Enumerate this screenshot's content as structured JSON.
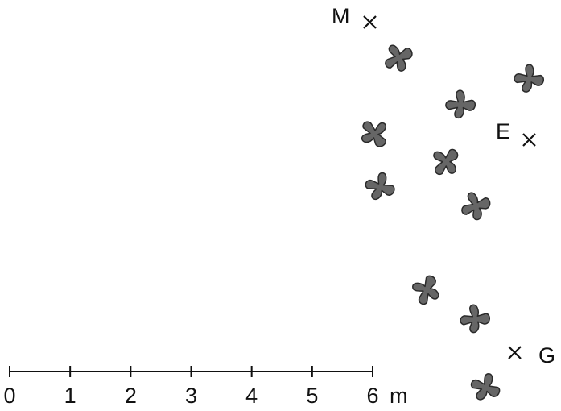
{
  "markers": [
    {
      "label": "M"
    },
    {
      "label": "E"
    },
    {
      "label": "G"
    }
  ],
  "scale_bar": {
    "ticks": [
      0,
      1,
      2,
      3,
      4,
      5,
      6
    ],
    "unit": "m"
  }
}
